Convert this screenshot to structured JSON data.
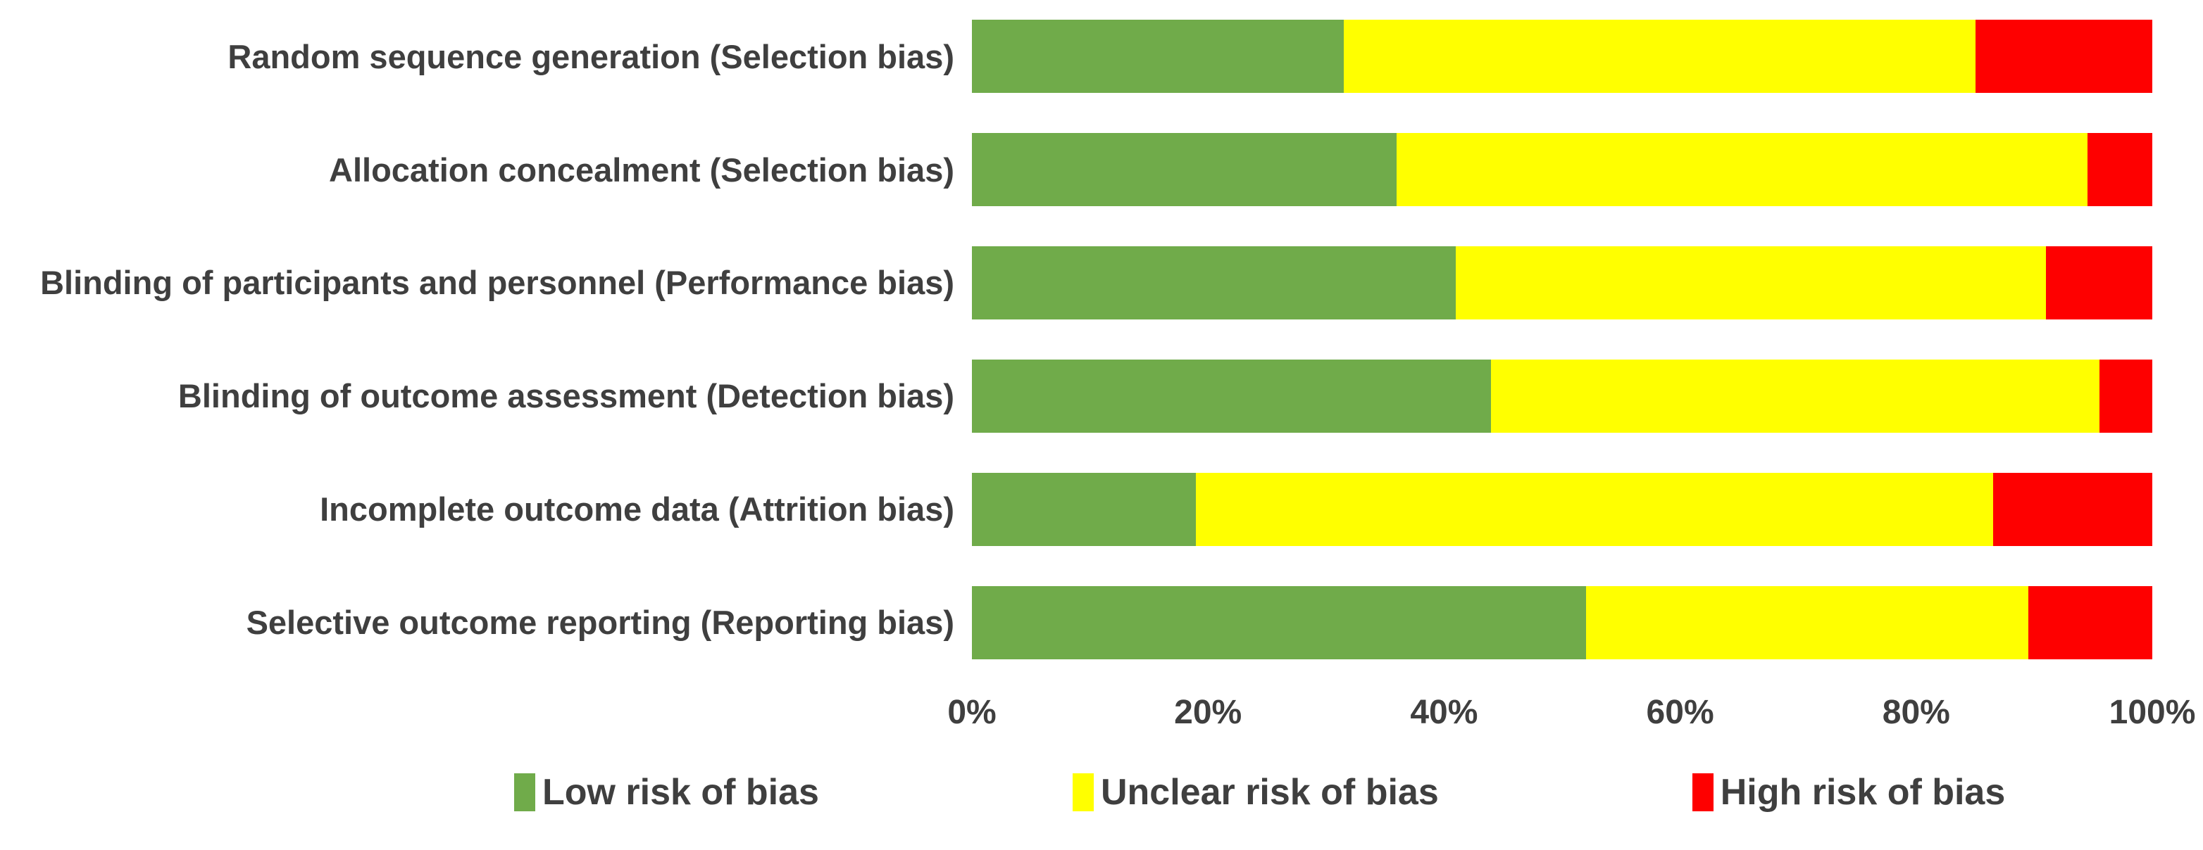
{
  "colors": {
    "low_risk": "#70AB4A",
    "unclear_risk": "#FFFF00",
    "high_risk": "#FE0000",
    "text": "#3F3F3F",
    "background": "#FFFFFF"
  },
  "chart_data": {
    "type": "bar",
    "orientation": "horizontal",
    "stacked": true,
    "unit": "%",
    "title": "",
    "xlabel": "",
    "ylabel": "",
    "xlim": [
      0,
      100
    ],
    "grid": false,
    "categories": [
      "Random sequence generation (Selection bias)",
      "Allocation concealment (Selection bias)",
      "Blinding of participants and personnel (Performance bias)",
      "Blinding of outcome assessment (Detection bias)",
      "Incomplete outcome data (Attrition bias)",
      "Selective outcome reporting (Reporting bias)"
    ],
    "series": [
      {
        "name": "Low risk of bias",
        "color": "#70AB4A",
        "values": [
          31.5,
          36.0,
          41.0,
          44.0,
          19.0,
          52.0
        ]
      },
      {
        "name": "Unclear risk of bias",
        "color": "#FFFF00",
        "values": [
          53.5,
          58.5,
          50.0,
          51.5,
          67.5,
          37.5
        ]
      },
      {
        "name": "High risk of bias",
        "color": "#FE0000",
        "values": [
          15.0,
          5.5,
          9.0,
          4.5,
          13.5,
          10.5
        ]
      }
    ],
    "x_axis": {
      "tick_labels": [
        "0%",
        "20%",
        "40%",
        "60%",
        "80%",
        "100%"
      ],
      "tick_values": [
        0,
        20,
        40,
        60,
        80,
        100
      ]
    },
    "legend": {
      "position": "bottom",
      "entries": [
        "Low risk of bias",
        "Unclear risk of bias",
        "High risk of bias"
      ]
    }
  }
}
